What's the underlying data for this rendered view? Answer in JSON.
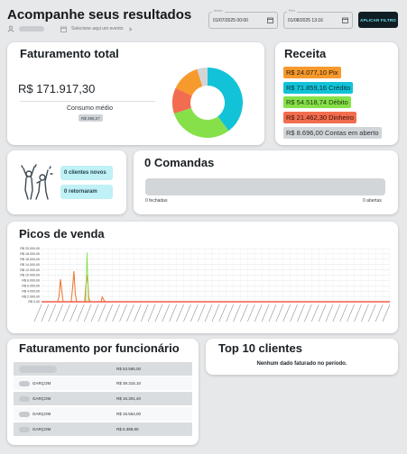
{
  "header": {
    "title": "Acompanhe seus resultados",
    "event_placeholder": "Selecione aqui um evento",
    "start": {
      "label": "Início",
      "value": "01/07/2025 00:00"
    },
    "end": {
      "label": "Fim",
      "value": "01/08/2025 13:16"
    },
    "filter_button": "APLICAR FILTRO"
  },
  "faturamento_total": {
    "title": "Faturamento total",
    "value": "R$ 171.917,30",
    "consumo_label": "Consumo médio",
    "consumo_value": "R$ 395,27"
  },
  "receita": {
    "title": "Receita",
    "items": [
      {
        "label": "R$ 24.077,10 Pix",
        "color": "#f79a2e"
      },
      {
        "label": "R$ 71.859,16 Crédito",
        "color": "#12c3d8"
      },
      {
        "label": "R$ 54.518,74 Débito",
        "color": "#86e04a"
      },
      {
        "label": "R$ 21.462,30 Dinheiro",
        "color": "#f26d4f"
      },
      {
        "label": "R$ 8.696,00 Contas em aberto",
        "color": "#d2d5d8"
      }
    ]
  },
  "clientes": {
    "novos": "0 clientes novos",
    "retornaram": "0 retornaram"
  },
  "comandas": {
    "title": "0 Comandas",
    "fechadas": "0 fechadas",
    "abertas": "0 abertas"
  },
  "picos": {
    "title": "Picos de venda"
  },
  "funcionario": {
    "title": "Faturamento por funcionário",
    "rows": [
      {
        "name": "",
        "value": "R$ 53.585,00"
      },
      {
        "name": "GARÇOM",
        "value": "R$ 39.315,10"
      },
      {
        "name": "GARÇOM",
        "value": "R$ 16.301,40"
      },
      {
        "name": "GARÇOM",
        "value": "R$ 15.554,00"
      },
      {
        "name": "GARÇOM",
        "value": "R$ 6.388,80"
      }
    ]
  },
  "top_clientes": {
    "title": "Top 10 clientes",
    "empty": "Nenhum dado faturado no período."
  },
  "chart_data": {
    "type": "line",
    "y_ticks": [
      "R$ 0,00",
      "R$ 2.000,00",
      "R$ 4.000,00",
      "R$ 6.000,00",
      "R$ 8.000,00",
      "R$ 10.000,00",
      "R$ 12.000,00",
      "R$ 14.000,00",
      "R$ 16.000,00",
      "R$ 18.000,00",
      "R$ 20.000,00"
    ],
    "ylim": [
      0,
      20000
    ],
    "x_tick_count": 50,
    "series": [
      {
        "color": "#f27a3a",
        "values": [
          0,
          0,
          0,
          0,
          0,
          0,
          0,
          0,
          0,
          0,
          0,
          0,
          0,
          2000,
          8500,
          4000,
          0,
          0,
          0,
          0,
          0,
          0,
          0,
          5200,
          11500,
          3000,
          0,
          0,
          0,
          0,
          0,
          0,
          0,
          6500,
          10200,
          1500,
          0,
          0,
          0,
          0,
          0,
          0,
          0,
          0,
          0,
          1800,
          800,
          0,
          0,
          0,
          0,
          0,
          0,
          0,
          0,
          0,
          0,
          0,
          0,
          0,
          0,
          0,
          0,
          0,
          0,
          0,
          0,
          0,
          0,
          0,
          0,
          0,
          0,
          0,
          0,
          0,
          0,
          0,
          0,
          0,
          0,
          0,
          0,
          0,
          0,
          0,
          0,
          0,
          0,
          0,
          0,
          0,
          0,
          0,
          0,
          0,
          0,
          0,
          0,
          0,
          0,
          0,
          0,
          0,
          0,
          0,
          0,
          0,
          0,
          0,
          0,
          0,
          0,
          0,
          0,
          0,
          0,
          0,
          0,
          0,
          0,
          0,
          0,
          0,
          0,
          0,
          0,
          0,
          0,
          0,
          0,
          0,
          0,
          0,
          0,
          0,
          0,
          0,
          0,
          0,
          0,
          0,
          0,
          0,
          0,
          0,
          0,
          0,
          0,
          0,
          0,
          0,
          0,
          0,
          0,
          0,
          0,
          0,
          0,
          0,
          0,
          0,
          0,
          0,
          0,
          0,
          0,
          0,
          0,
          0,
          0,
          0,
          0,
          0,
          0,
          0,
          0,
          0,
          0,
          0,
          0,
          0,
          0,
          0,
          0,
          0,
          0,
          0,
          0,
          0,
          0,
          0,
          0,
          0,
          0,
          0,
          0,
          0,
          0,
          0,
          0,
          0,
          0,
          0,
          0,
          0,
          0,
          0,
          0,
          0,
          0,
          0,
          0,
          0,
          0,
          0,
          0,
          0,
          0,
          0,
          0,
          0,
          0,
          0,
          0,
          0,
          0,
          0,
          0,
          0,
          0,
          0,
          0,
          0,
          0,
          0,
          0,
          0,
          0,
          0,
          0,
          0,
          0,
          0,
          0,
          0,
          0,
          0,
          0,
          0,
          0,
          0,
          0,
          0,
          0,
          0,
          0,
          0,
          0
        ]
      },
      {
        "color": "#86e04a",
        "values": [
          0,
          0,
          0,
          0,
          0,
          0,
          0,
          0,
          0,
          0,
          0,
          0,
          0,
          0,
          0,
          0,
          0,
          0,
          0,
          0,
          0,
          0,
          0,
          0,
          0,
          0,
          0,
          0,
          0,
          0,
          0,
          0,
          0,
          0,
          18500,
          0,
          0,
          0,
          0,
          0,
          0,
          0,
          0,
          0,
          0,
          0,
          0,
          0,
          0,
          0,
          0,
          0,
          0,
          0,
          0,
          0,
          0,
          0,
          0,
          0,
          0,
          0,
          0,
          0,
          0,
          0,
          0,
          0,
          0,
          0,
          0,
          0,
          0,
          0,
          0,
          0,
          0,
          0,
          0,
          0,
          0,
          0,
          0,
          0,
          0,
          0,
          0,
          0,
          0,
          0,
          0,
          0,
          0,
          0,
          0,
          0,
          0,
          0,
          0,
          0,
          0,
          0,
          0,
          0,
          0,
          0,
          0,
          0,
          0,
          0,
          0,
          0,
          0,
          0,
          0,
          0,
          0,
          0,
          0,
          0,
          0,
          0,
          0,
          0,
          0,
          0,
          0,
          0,
          0,
          0,
          0,
          0,
          0,
          0,
          0,
          0,
          0,
          0,
          0,
          0,
          0,
          0,
          0,
          0,
          0,
          0,
          0,
          0,
          0,
          0,
          0,
          0,
          0,
          0,
          0,
          0,
          0,
          0,
          0,
          0,
          0,
          0,
          0,
          0,
          0,
          0,
          0,
          0,
          0,
          0,
          0,
          0,
          0,
          0,
          0,
          0,
          0,
          0,
          0,
          0,
          0,
          0,
          0,
          0,
          0,
          0,
          0,
          0,
          0,
          0,
          0,
          0,
          0,
          0,
          0,
          0,
          0,
          0,
          0,
          0,
          0,
          0,
          0,
          0,
          0,
          0,
          0,
          0,
          0,
          0,
          0,
          0,
          0,
          0,
          0,
          0,
          0,
          0,
          0,
          0,
          0,
          0,
          0,
          0,
          0,
          0,
          0,
          0,
          0,
          0,
          0,
          0,
          0,
          0,
          0,
          0,
          0,
          0,
          0,
          0,
          0,
          0,
          0,
          0,
          0,
          0,
          0,
          0,
          0,
          0,
          0,
          0,
          0,
          0,
          0,
          0,
          0,
          0,
          0,
          0,
          0
        ]
      },
      {
        "color": "#ee5b4a",
        "values": [
          0,
          0,
          0,
          0,
          0,
          0,
          0,
          0,
          0,
          0,
          0,
          0,
          0,
          0,
          0,
          0,
          0,
          0,
          0,
          0,
          0,
          0,
          0,
          0,
          0,
          0,
          0,
          0,
          0,
          0,
          0,
          0,
          0,
          0,
          0,
          0,
          0,
          0,
          0,
          0,
          0,
          0,
          0,
          0,
          0,
          0,
          0,
          0,
          0,
          0,
          0,
          0,
          0,
          0,
          0,
          0,
          0,
          0,
          0,
          0,
          0,
          0,
          0,
          0,
          0,
          0,
          0,
          0,
          0,
          0,
          0,
          0,
          0,
          0,
          0,
          0,
          0,
          0,
          0,
          0,
          0,
          0,
          0,
          0,
          0,
          0,
          0,
          0,
          0,
          0,
          0,
          0,
          0,
          0,
          0,
          0,
          0,
          0,
          0,
          0,
          0,
          0,
          0,
          0,
          0,
          0,
          0,
          0,
          0,
          0,
          0,
          0,
          0,
          0,
          0,
          0,
          0,
          0,
          0,
          0,
          0,
          0,
          0,
          0,
          0,
          0,
          0,
          0,
          0,
          0,
          0,
          0,
          0,
          0,
          0,
          0,
          0,
          0,
          0,
          0,
          0,
          0,
          0,
          0,
          0,
          0,
          0,
          0,
          0,
          0,
          0,
          0,
          0,
          0,
          0,
          0,
          0,
          0,
          0,
          0,
          0,
          0,
          0,
          0,
          0,
          0,
          0,
          0,
          0,
          0,
          0,
          0,
          0,
          0,
          0,
          0,
          0,
          0,
          0,
          0,
          0,
          0,
          0,
          0,
          0,
          0,
          0,
          0,
          0,
          0,
          0,
          0,
          0,
          0,
          0,
          0,
          0,
          0,
          0,
          0,
          0,
          0,
          0,
          0,
          0,
          0,
          0,
          0,
          0,
          0,
          0,
          0,
          0,
          0,
          0,
          0,
          0,
          0,
          0,
          0,
          0,
          0,
          0,
          0,
          0,
          0,
          0,
          0,
          0,
          0,
          0,
          0,
          0,
          0,
          0,
          0,
          0,
          0,
          0,
          0,
          0,
          0,
          0,
          0,
          0,
          0,
          0,
          0,
          0,
          0,
          0,
          0,
          0,
          0,
          0,
          0,
          0,
          0,
          0,
          0,
          0
        ]
      }
    ],
    "donut": [
      {
        "value": 71859.16,
        "color": "#12c3d8"
      },
      {
        "value": 54518.74,
        "color": "#86e04a"
      },
      {
        "value": 21462.3,
        "color": "#f26d4f"
      },
      {
        "value": 24077.1,
        "color": "#f79a2e"
      },
      {
        "value": 8696.0,
        "color": "#d2d5d8"
      }
    ]
  }
}
